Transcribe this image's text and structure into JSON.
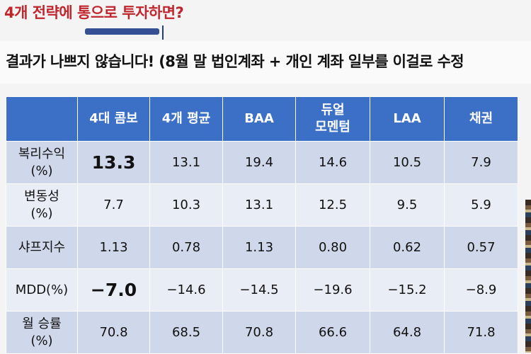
{
  "slide": {
    "title": "4개 전략에 통으로 투자하면?",
    "subtitle": "결과가 나쁘지 않습니다! (8월 말 법인계좌 + 개인 계좌 일부를 이걸로 수정"
  },
  "table": {
    "columns": [
      "4대 콤보",
      "4개 평균",
      "BAA",
      "듀얼\n모멘텀",
      "LAA",
      "채권"
    ],
    "rows": [
      {
        "label": "복리수익\n(%)",
        "values": [
          "13.3",
          "13.1",
          "19.4",
          "14.6",
          "10.5",
          "7.9"
        ]
      },
      {
        "label": "변동성\n(%)",
        "values": [
          "7.7",
          "10.3",
          "13.1",
          "12.5",
          "9.5",
          "5.9"
        ]
      },
      {
        "label": "샤프지수",
        "values": [
          "1.13",
          "0.78",
          "1.13",
          "0.80",
          "0.62",
          "0.57"
        ]
      },
      {
        "label": "MDD(%)",
        "values": [
          "−7.0",
          "−14.6",
          "−14.5",
          "−19.6",
          "−15.2",
          "−8.9"
        ]
      },
      {
        "label": "월 승률\n(%)",
        "values": [
          "70.8",
          "68.5",
          "70.8",
          "66.6",
          "64.8",
          "71.8"
        ]
      }
    ]
  },
  "colors": {
    "title": "#c0262e",
    "header_bg": "#3b70c6",
    "row_dark": "#cfd8ea",
    "row_light": "#e9edf5"
  }
}
